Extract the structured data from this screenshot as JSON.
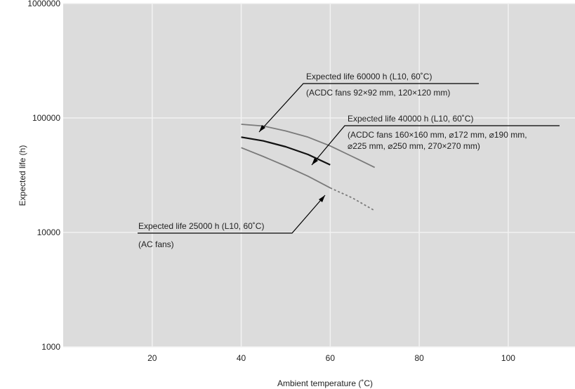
{
  "chart_data": {
    "type": "line",
    "title": "",
    "xlabel": "Ambient temperature (˚C)",
    "ylabel": "Expected life (h)",
    "xlim": [
      0,
      115
    ],
    "ylim": [
      1000,
      1000000
    ],
    "yscale": "log",
    "grid": true,
    "legend": "none",
    "x_ticks": [
      20,
      40,
      60,
      80,
      100
    ],
    "x_tick_labels": [
      "20",
      "40",
      "60",
      "80",
      "100"
    ],
    "y_ticks": [
      1000,
      10000,
      100000,
      1000000
    ],
    "y_tick_labels": [
      "1000",
      "10000",
      "100000",
      "1000000"
    ],
    "colors": {
      "background": "#dcdcdc",
      "grid": "#f2f2f2",
      "series_gray": "#7a7a7a",
      "series_black": "#111111",
      "annotation": "#000000"
    },
    "series": [
      {
        "x": [
          40,
          45,
          50,
          55,
          60,
          65,
          70
        ],
        "y": [
          88000,
          85000,
          77000,
          68000,
          57000,
          46000,
          37000
        ],
        "color": "#7a7a7a",
        "style": "solid"
      },
      {
        "x": [
          40,
          45,
          50,
          55,
          60
        ],
        "y": [
          68000,
          63000,
          56000,
          48000,
          39000
        ],
        "color": "#111111",
        "style": "solid"
      },
      {
        "x": [
          40,
          45,
          50,
          55,
          60
        ],
        "y": [
          55000,
          46000,
          38000,
          31000,
          24500
        ],
        "color": "#7a7a7a",
        "style": "solid"
      },
      {
        "x": [
          60,
          65,
          70
        ],
        "y": [
          24500,
          20000,
          15500
        ],
        "color": "#7a7a7a",
        "style": "dashed"
      }
    ],
    "annotations": [
      {
        "line1": "Expected life 60000 h (L10, 60˚C)",
        "line2": "(ACDC fans 92×92 mm, 120×120 mm)",
        "arrow_to": [
          45,
          85000
        ]
      },
      {
        "line1": "Expected life 40000 h (L10, 60˚C)",
        "line2": "(ACDC fans 160×160 mm, ⌀172 mm, ⌀190 mm,",
        "line3": "⌀225 mm, ⌀250 mm, 270×270 mm)",
        "arrow_to": [
          57,
          45000
        ]
      },
      {
        "line1": "Expected life 25000 h (L10, 60˚C)",
        "line2": "(AC fans)",
        "arrow_to": [
          60,
          24500
        ]
      }
    ]
  }
}
